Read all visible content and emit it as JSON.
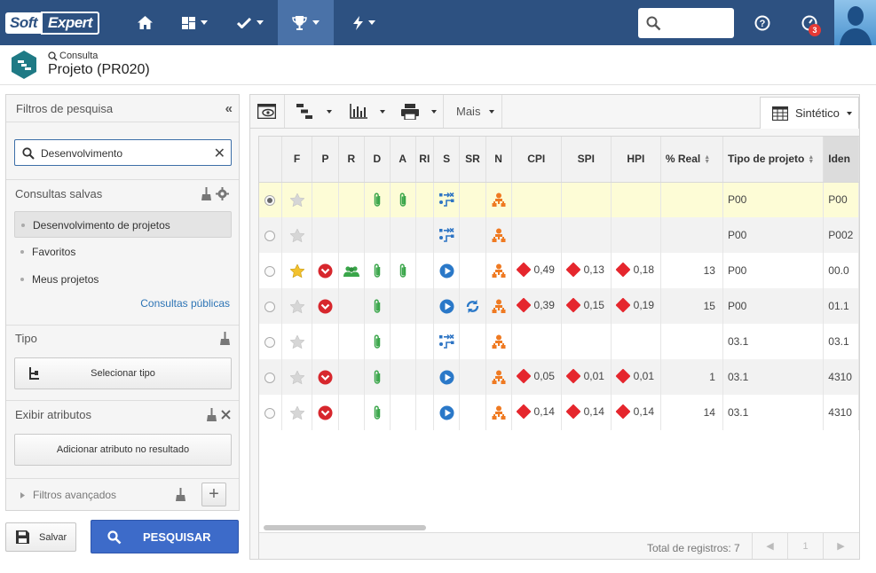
{
  "app": {
    "logo_soft": "Soft",
    "logo_expert": "Expert",
    "notif_count": "3"
  },
  "header": {
    "subtitle": "Consulta",
    "title": "Projeto (PR020)"
  },
  "left_panel": {
    "title": "Filtros de pesquisa",
    "search_value": "Desenvolvimento",
    "saved_title": "Consultas salvas",
    "saved_items": [
      "Desenvolvimento de projetos",
      "Favoritos",
      "Meus projetos"
    ],
    "public_link": "Consultas públicas",
    "type_title": "Tipo",
    "type_button": "Selecionar tipo",
    "attr_title": "Exibir atributos",
    "attr_button": "Adicionar atributo no resultado",
    "advanced": "Filtros avançados"
  },
  "actions": {
    "save": "Salvar",
    "search": "PESQUISAR"
  },
  "toolbar": {
    "more": "Mais",
    "view": "Sintético"
  },
  "grid": {
    "columns": [
      "",
      "F",
      "P",
      "R",
      "D",
      "A",
      "RI",
      "S",
      "SR",
      "N",
      "CPI",
      "SPI",
      "HPI",
      "% Real",
      "Tipo de projeto",
      "Iden"
    ],
    "rows": [
      {
        "sel": true,
        "fav": false,
        "p": false,
        "r": false,
        "d": true,
        "a": true,
        "s": "plan",
        "sr": false,
        "cpi": "",
        "spi": "",
        "hpi": "",
        "real": "",
        "tipo": "P00",
        "iden": "P00"
      },
      {
        "sel": false,
        "fav": false,
        "p": false,
        "r": false,
        "d": false,
        "a": false,
        "s": "plan",
        "sr": false,
        "cpi": "",
        "spi": "",
        "hpi": "",
        "real": "",
        "tipo": "P00",
        "iden": "P002"
      },
      {
        "sel": false,
        "fav": true,
        "p": true,
        "r": true,
        "d": true,
        "a": true,
        "s": "play",
        "sr": false,
        "cpi": "0,49",
        "spi": "0,13",
        "hpi": "0,18",
        "real": "13",
        "tipo": "P00",
        "iden": "00.0"
      },
      {
        "sel": false,
        "fav": false,
        "p": true,
        "r": false,
        "d": true,
        "a": false,
        "s": "play",
        "sr": true,
        "cpi": "0,39",
        "spi": "0,15",
        "hpi": "0,19",
        "real": "15",
        "tipo": "P00",
        "iden": "01.1"
      },
      {
        "sel": false,
        "fav": false,
        "p": false,
        "r": false,
        "d": true,
        "a": false,
        "s": "plan",
        "sr": false,
        "cpi": "",
        "spi": "",
        "hpi": "",
        "real": "",
        "tipo": "03.1",
        "iden": "03.1"
      },
      {
        "sel": false,
        "fav": false,
        "p": true,
        "r": false,
        "d": true,
        "a": false,
        "s": "play",
        "sr": false,
        "cpi": "0,05",
        "spi": "0,01",
        "hpi": "0,01",
        "real": "1",
        "tipo": "03.1",
        "iden": "4310"
      },
      {
        "sel": false,
        "fav": false,
        "p": true,
        "r": false,
        "d": true,
        "a": false,
        "s": "play",
        "sr": false,
        "cpi": "0,14",
        "spi": "0,14",
        "hpi": "0,14",
        "real": "14",
        "tipo": "03.1",
        "iden": "4310"
      }
    ],
    "total": "Total de registros: 7",
    "page": "1"
  },
  "colors": {
    "topbar": "#2d5181",
    "accent": "#3d6bc9",
    "diamond": "#e5262d",
    "highlight_row": "#fdfcd6"
  }
}
